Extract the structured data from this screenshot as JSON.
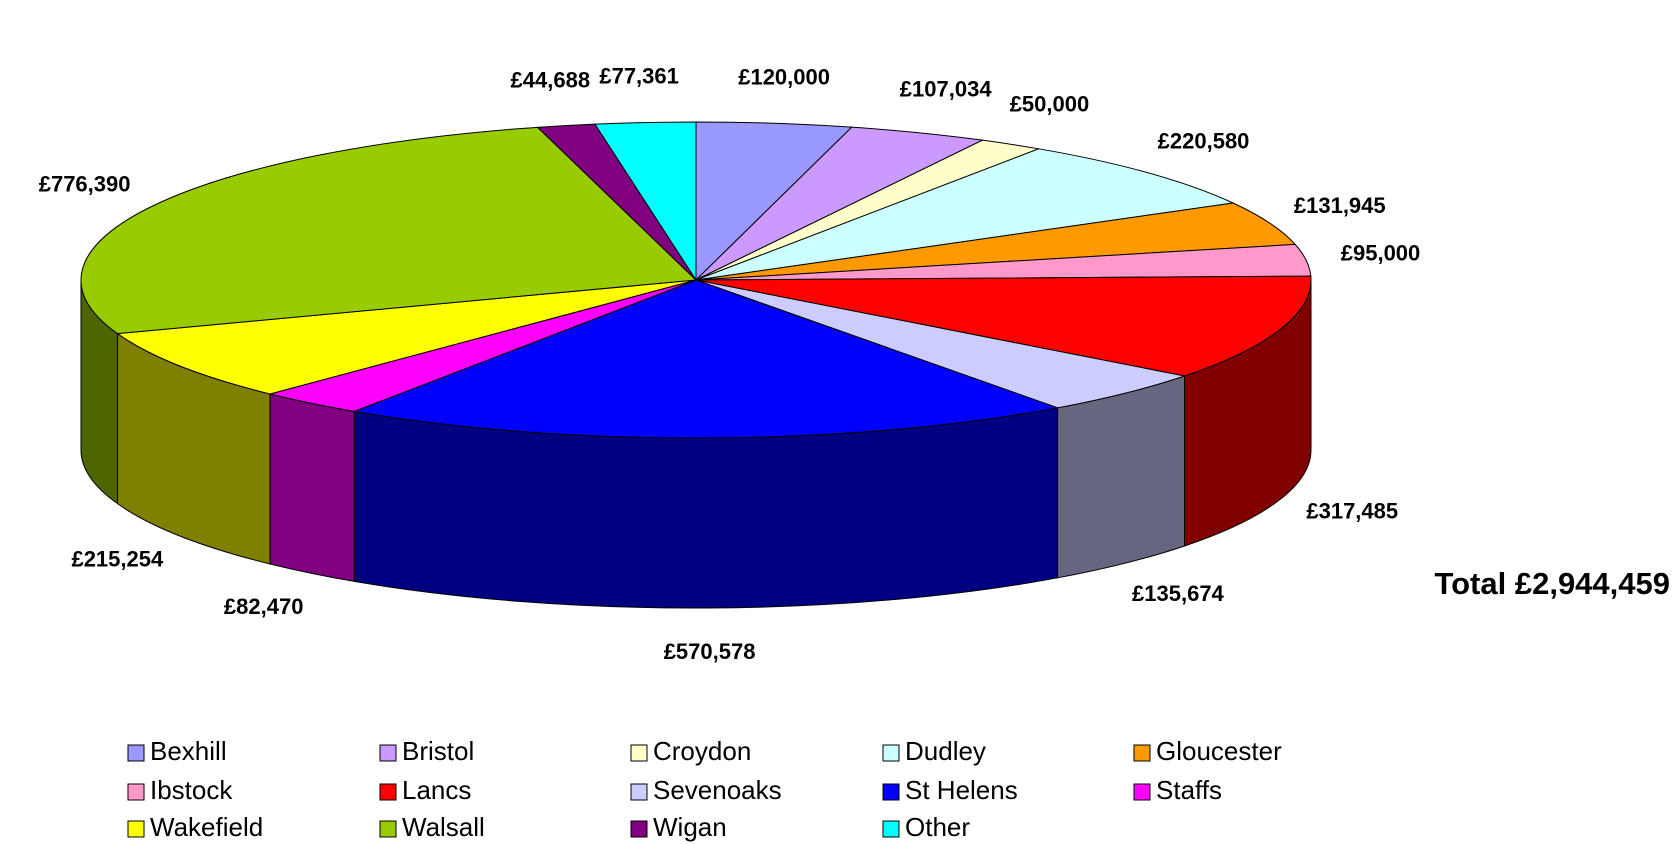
{
  "chart_data": {
    "type": "pie3d",
    "categories": [
      "Bexhill",
      "Bristol",
      "Croydon",
      "Dudley",
      "Gloucester",
      "Ibstock",
      "Lancs",
      "Sevenoaks",
      "St Helens",
      "Staffs",
      "Wakefield",
      "Walsall",
      "Wigan",
      "Other"
    ],
    "values": [
      120000,
      107034,
      50000,
      220580,
      131945,
      95000,
      317485,
      135674,
      570578,
      82470,
      215254,
      776390,
      44688,
      77361
    ],
    "value_labels": [
      "£120,000",
      "£107,034",
      "£50,000",
      "£220,580",
      "£131,945",
      "£95,000",
      "£317,485",
      "£135,674",
      "£570,578",
      "£82,470",
      "£215,254",
      "£776,390",
      "£44,688",
      "£77,361"
    ],
    "colors": [
      "#9999ff",
      "#cc99ff",
      "#ffffcc",
      "#ccffff",
      "#ff9900",
      "#ff99cc",
      "#ff0000",
      "#ccccff",
      "#0000ff",
      "#ff00ff",
      "#ffff00",
      "#99cc00",
      "#800080",
      "#00ffff"
    ],
    "annotation": "Total £2,944,459",
    "legend": "bottom"
  }
}
